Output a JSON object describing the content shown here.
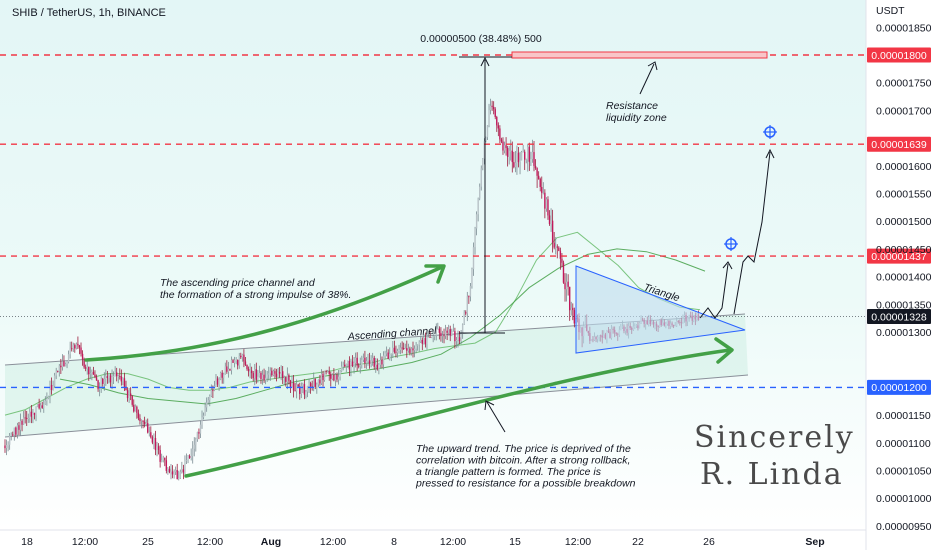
{
  "chart_data": {
    "type": "candlestick",
    "title": "SHIB / TetherUS, 1h, BINANCE",
    "currency": "USDT",
    "ylim": [
      9.4e-06,
      1.9e-05
    ],
    "y_ticks": [
      "0.00001850",
      "0.00001750",
      "0.00001700",
      "0.00001600",
      "0.00001550",
      "0.00001500",
      "0.00001450",
      "0.00001400",
      "0.00001350",
      "0.00001300",
      "0.00001150",
      "0.00001100",
      "0.00001050",
      "0.00001000",
      "0.00000950"
    ],
    "x_ticks": [
      "18",
      "12:00",
      "25",
      "12:00",
      "Aug",
      "12:00",
      "8",
      "12:00",
      "15",
      "12:00",
      "22",
      "26",
      "Sep"
    ],
    "price_levels": [
      {
        "value": "0.00001800",
        "role": "resistance",
        "color": "#f23645"
      },
      {
        "value": "0.00001639",
        "role": "target",
        "color": "#f23645"
      },
      {
        "value": "0.00001437",
        "role": "resistance",
        "color": "#f23645"
      },
      {
        "value": "0.00001328",
        "role": "current",
        "color": "#131722"
      },
      {
        "value": "0.00001200",
        "role": "support",
        "color": "#2962ff"
      }
    ],
    "measure_label": "0.00000500 (38.48%) 500",
    "annotations": {
      "resistance_zone": [
        "Resistance",
        "liquidity zone"
      ],
      "triangle": "Triangle",
      "channel": "Ascending channel",
      "impulse": [
        "The ascending price channel and",
        "the formation of a strong impulse of 38%."
      ],
      "trend": [
        "The upward trend. The price is deprived of the",
        "correlation with bitcoin. After a strong rollback,",
        "a triangle pattern is formed. The price is",
        "pressed to resistance for a possible breakdown"
      ]
    },
    "signature": [
      "Sincerely",
      "R. Linda"
    ],
    "series": [
      {
        "name": "",
        "type": "candlestick",
        "values": [
          1.095e-05,
          1.12e-05,
          1.14e-05,
          1.16e-05,
          1.18e-05,
          1.225e-05,
          1.255e-05,
          1.275e-05,
          1.23e-05,
          1.205e-05,
          1.215e-05,
          1.225e-05,
          1.18e-05,
          1.145e-05,
          1.115e-05,
          1.075e-05,
          1.04e-05,
          1.045e-05,
          1.085e-05,
          1.14e-05,
          1.195e-05,
          1.225e-05,
          1.245e-05,
          1.25e-05,
          1.225e-05,
          1.215e-05,
          1.23e-05,
          1.22e-05,
          1.2e-05,
          1.195e-05,
          1.21e-05,
          1.225e-05,
          1.22e-05,
          1.24e-05,
          1.245e-05,
          1.25e-05,
          1.24e-05,
          1.26e-05,
          1.27e-05,
          1.265e-05,
          1.28e-05,
          1.29e-05,
          1.3e-05,
          1.295e-05,
          1.29e-05,
          1.39e-05,
          1.6e-05,
          1.72e-05,
          1.64e-05,
          1.61e-05,
          1.63e-05,
          1.61e-05,
          1.55e-05,
          1.47e-05,
          1.4e-05,
          1.32e-05,
          1.3e-05,
          1.29e-05,
          1.295e-05,
          1.3e-05,
          1.305e-05,
          1.31e-05,
          1.32e-05,
          1.315e-05,
          1.315e-05,
          1.32e-05,
          1.325e-05,
          1.328e-05
        ]
      },
      {
        "name": "",
        "type": "moving-average",
        "color": "#66bb6a",
        "values": [
          1.15e-05,
          1.16e-05,
          1.18e-05,
          1.2e-05,
          1.215e-05,
          1.225e-05,
          1.225e-05,
          1.215e-05,
          1.2e-05,
          1.195e-05,
          1.195e-05,
          1.2e-05,
          1.21e-05,
          1.215e-05,
          1.22e-05,
          1.225e-05,
          1.23e-05,
          1.24e-05,
          1.245e-05,
          1.255e-05,
          1.262e-05,
          1.27e-05,
          1.275e-05,
          1.28e-05,
          1.3e-05,
          1.36e-05,
          1.43e-05,
          1.47e-05,
          1.48e-05,
          1.45e-05,
          1.42e-05,
          1.38e-05,
          1.36e-05,
          1.345e-05,
          1.34e-05
        ]
      },
      {
        "name": "",
        "type": "moving-average",
        "color": "#43a047",
        "values": [
          1.215e-05,
          1.205e-05,
          1.19e-05,
          1.18e-05,
          1.175e-05,
          1.17e-05,
          1.18e-05,
          1.195e-05,
          1.21e-05,
          1.22e-05,
          1.228e-05,
          1.235e-05,
          1.245e-05,
          1.26e-05,
          1.29e-05,
          1.33e-05,
          1.38e-05,
          1.415e-05,
          1.44e-05,
          1.45e-05,
          1.445e-05,
          1.43e-05,
          1.41e-05
        ]
      }
    ]
  }
}
